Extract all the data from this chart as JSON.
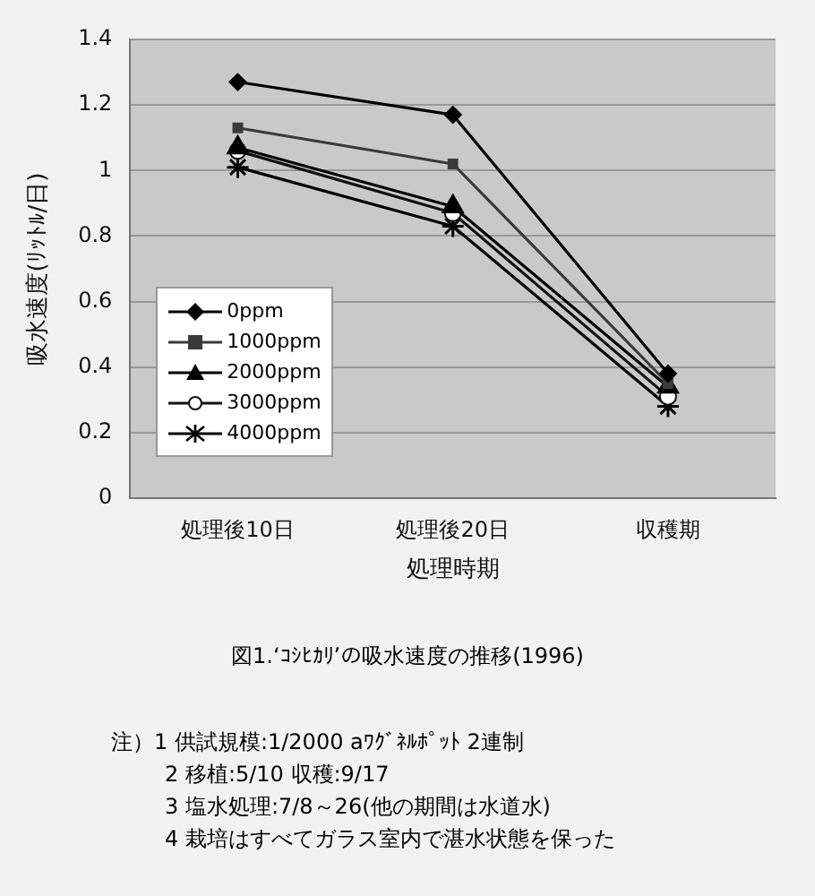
{
  "chart_data": {
    "type": "line",
    "title": "図1.‘ｺｼﾋｶﾘ’の吸水速度の推移(1996)",
    "xlabel": "処理時期",
    "ylabel": "吸水速度(ﾘｯﾄﾙ/日)",
    "categories": [
      "処理後10日",
      "処理後20日",
      "収穫期"
    ],
    "series": [
      {
        "name": "0ppm",
        "color": "#000000",
        "marker": "diamond",
        "values": [
          1.27,
          1.17,
          0.38
        ]
      },
      {
        "name": "1000ppm",
        "color": "#3a3a3a",
        "marker": "square",
        "values": [
          1.13,
          1.02,
          0.35
        ]
      },
      {
        "name": "2000ppm",
        "color": "#000000",
        "marker": "triangle",
        "values": [
          1.07,
          0.89,
          0.34
        ]
      },
      {
        "name": "3000ppm",
        "color": "#111111",
        "marker": "circle",
        "values": [
          1.06,
          0.87,
          0.31
        ]
      },
      {
        "name": "4000ppm",
        "color": "#000000",
        "marker": "cross",
        "values": [
          1.01,
          0.83,
          0.28
        ]
      }
    ],
    "ylim": [
      0,
      1.4
    ],
    "yticks": [
      0,
      0.2,
      0.4,
      0.6,
      0.8,
      1,
      1.2,
      1.4
    ],
    "grid": "y",
    "legend": "left",
    "line_style": "solid",
    "annotations": [
      "注）1 供試規模:1/2000 aﾜｸﾞﾈﾙﾎﾟｯﾄ 2連制",
      "2 移植:5/10 収穫:9/17",
      "3 塩水処理:7/8～26(他の期間は水道水)",
      "4 栽培はすべてガラス室内で湛水状態を保った"
    ]
  }
}
